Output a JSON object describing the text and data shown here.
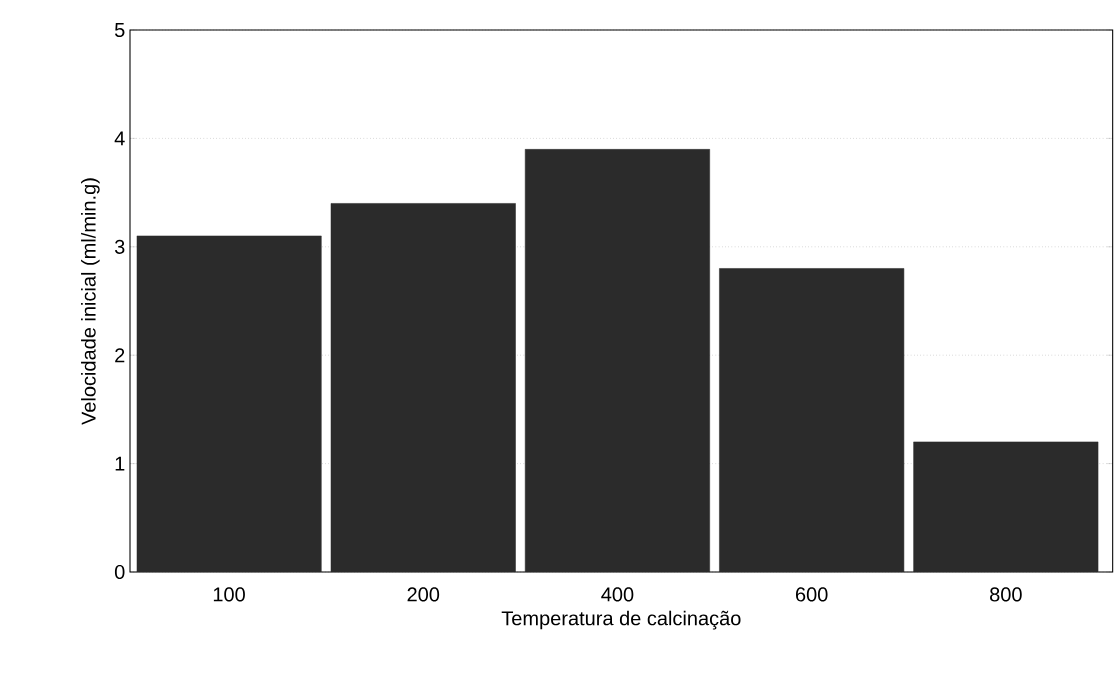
{
  "chart_data": {
    "type": "bar",
    "xlabel": "Temperatura de calcinação",
    "ylabel": "Velocidade inicial (ml/min.g)",
    "categories": [
      "100",
      "200",
      "400",
      "600",
      "800"
    ],
    "values": [
      3.1,
      3.4,
      3.9,
      2.8,
      1.2
    ],
    "color": "#2b2b2b",
    "ylim": [
      0,
      5
    ],
    "yticks": [
      0,
      1,
      2,
      3,
      4,
      5
    ],
    "grid": "y"
  }
}
